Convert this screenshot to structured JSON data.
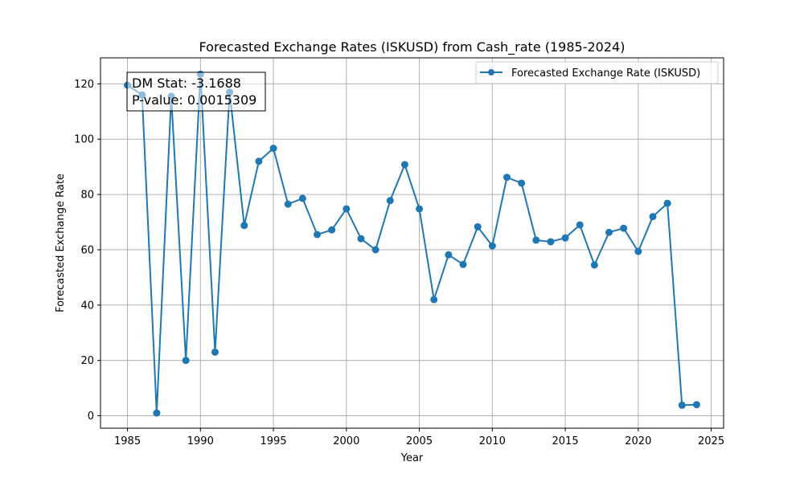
{
  "chart_data": {
    "type": "line",
    "title": "Forecasted Exchange Rates (ISKUSD) from Cash_rate (1985-2024)",
    "xlabel": "Year",
    "ylabel": "Forecasted Exchange Rate",
    "xlim": [
      1983.15,
      2025.85
    ],
    "ylim": [
      -4.5,
      129.4
    ],
    "xticks": [
      1985,
      1990,
      1995,
      2000,
      2005,
      2010,
      2015,
      2020,
      2025
    ],
    "yticks": [
      0,
      20,
      40,
      60,
      80,
      100,
      120
    ],
    "grid": true,
    "legend_position": "top-right",
    "series": [
      {
        "name": "Forecasted Exchange Rate (ISKUSD)",
        "color": "#1f77b4",
        "marker": "circle",
        "x": [
          1985,
          1986,
          1987,
          1988,
          1989,
          1990,
          1991,
          1992,
          1993,
          1994,
          1995,
          1996,
          1997,
          1998,
          1999,
          2000,
          2001,
          2002,
          2003,
          2004,
          2005,
          2006,
          2007,
          2008,
          2009,
          2010,
          2011,
          2012,
          2013,
          2014,
          2015,
          2016,
          2017,
          2018,
          2019,
          2020,
          2021,
          2022,
          2023,
          2024
        ],
        "y": [
          119.5,
          116,
          1,
          115.5,
          20,
          123.5,
          23,
          117,
          68.8,
          92,
          96.7,
          76.5,
          78.6,
          65.5,
          67.2,
          74.8,
          64,
          60,
          77.8,
          90.8,
          74.8,
          42,
          58.2,
          54.7,
          68.3,
          61.4,
          86.2,
          84.1,
          63.5,
          62.9,
          64.3,
          69,
          54.5,
          66.3,
          67.8,
          59.4,
          72,
          76.8,
          3.8,
          4
        ]
      }
    ],
    "annotation": {
      "line1": "DM Stat: -3.1688",
      "line2": "P-value: 0.0015309",
      "position": "top-left"
    }
  }
}
